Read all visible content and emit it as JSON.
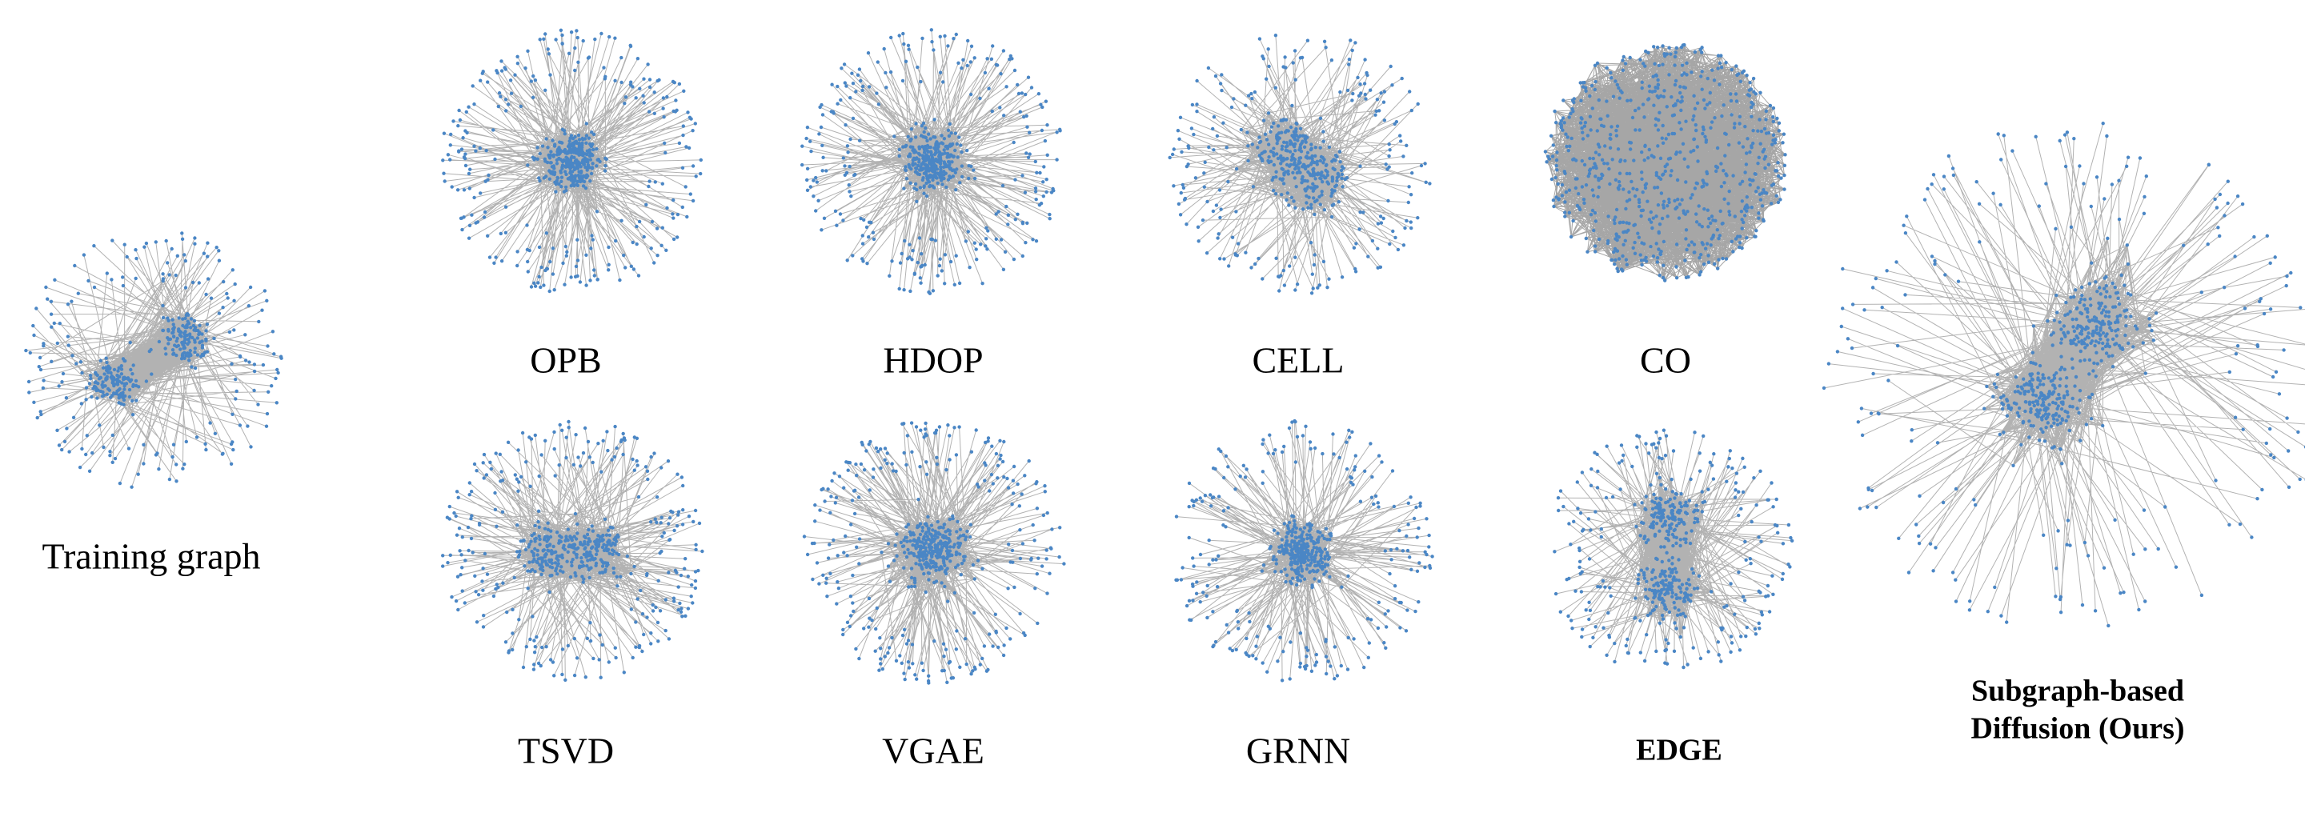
{
  "panels": [
    {
      "label": "Training graph"
    },
    {
      "label": "OPB"
    },
    {
      "label": "HDOP"
    },
    {
      "label": "CELL"
    },
    {
      "label": "CO"
    },
    {
      "label": "TSVD"
    },
    {
      "label": "VGAE"
    },
    {
      "label": "GRNN"
    },
    {
      "label": "EDGE"
    },
    {
      "label_lines": [
        "Subgraph-based",
        "Diffusion (Ours)"
      ]
    }
  ]
}
